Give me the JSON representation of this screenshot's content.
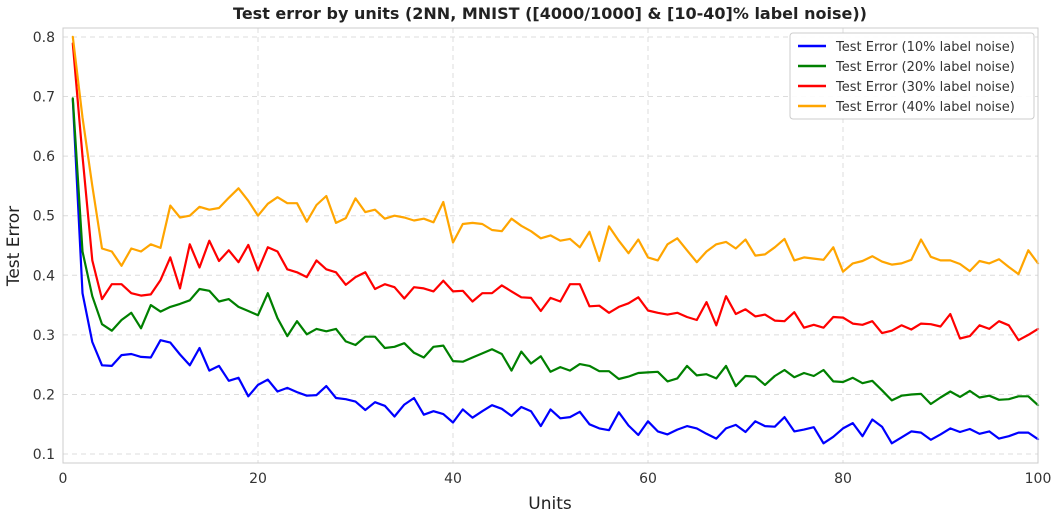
{
  "chart_data": {
    "type": "line",
    "title": "Test error by units (2NN, MNIST ([4000/1000] & [10-40]% label noise))",
    "xlabel": "Units",
    "ylabel": "Test Error",
    "xlim": [
      0,
      100
    ],
    "ylim": [
      0.085,
      0.815
    ],
    "xticks": [
      0,
      20,
      40,
      60,
      80,
      100
    ],
    "yticks": [
      0.1,
      0.2,
      0.3,
      0.4,
      0.5,
      0.6,
      0.7,
      0.8
    ],
    "grid": true,
    "legend_position": "top-right",
    "x": [
      1,
      2,
      3,
      4,
      5,
      6,
      7,
      8,
      9,
      10,
      11,
      12,
      13,
      14,
      15,
      16,
      17,
      18,
      19,
      20,
      21,
      22,
      23,
      24,
      25,
      26,
      27,
      28,
      29,
      30,
      31,
      32,
      33,
      34,
      35,
      36,
      37,
      38,
      39,
      40,
      41,
      42,
      43,
      44,
      45,
      46,
      47,
      48,
      49,
      50,
      51,
      52,
      53,
      54,
      55,
      56,
      57,
      58,
      59,
      60,
      61,
      62,
      63,
      64,
      65,
      66,
      67,
      68,
      69,
      70,
      71,
      72,
      73,
      74,
      75,
      76,
      77,
      78,
      79,
      80,
      81,
      82,
      83,
      84,
      85,
      86,
      87,
      88,
      89,
      90,
      91,
      92,
      93,
      94,
      95,
      96,
      97,
      98,
      99,
      100
    ],
    "series": [
      {
        "name": "Test Error (10% label noise)",
        "color": "#0000ff",
        "values": [
          0.695,
          0.37,
          0.288,
          0.249,
          0.248,
          0.266,
          0.268,
          0.263,
          0.262,
          0.291,
          0.287,
          0.267,
          0.249,
          0.278,
          0.24,
          0.248,
          0.223,
          0.228,
          0.197,
          0.216,
          0.225,
          0.205,
          0.211,
          0.204,
          0.198,
          0.199,
          0.214,
          0.194,
          0.192,
          0.188,
          0.174,
          0.187,
          0.181,
          0.163,
          0.183,
          0.194,
          0.166,
          0.172,
          0.167,
          0.153,
          0.175,
          0.161,
          0.172,
          0.182,
          0.176,
          0.164,
          0.179,
          0.172,
          0.147,
          0.175,
          0.16,
          0.162,
          0.171,
          0.15,
          0.143,
          0.14,
          0.17,
          0.148,
          0.132,
          0.155,
          0.138,
          0.133,
          0.141,
          0.147,
          0.143,
          0.134,
          0.126,
          0.143,
          0.149,
          0.137,
          0.155,
          0.147,
          0.146,
          0.162,
          0.138,
          0.141,
          0.145,
          0.118,
          0.129,
          0.143,
          0.152,
          0.13,
          0.158,
          0.146,
          0.118,
          0.128,
          0.138,
          0.136,
          0.124,
          0.133,
          0.143,
          0.137,
          0.142,
          0.134,
          0.138,
          0.126,
          0.13,
          0.136,
          0.136,
          0.125
        ]
      },
      {
        "name": "Test Error (20% label noise)",
        "color": "#008000",
        "values": [
          0.697,
          0.44,
          0.365,
          0.318,
          0.307,
          0.325,
          0.337,
          0.311,
          0.35,
          0.339,
          0.347,
          0.352,
          0.358,
          0.377,
          0.374,
          0.356,
          0.36,
          0.347,
          0.34,
          0.333,
          0.37,
          0.328,
          0.298,
          0.323,
          0.301,
          0.31,
          0.306,
          0.31,
          0.289,
          0.283,
          0.297,
          0.297,
          0.278,
          0.28,
          0.286,
          0.27,
          0.262,
          0.28,
          0.282,
          0.256,
          0.255,
          0.262,
          0.269,
          0.276,
          0.268,
          0.24,
          0.272,
          0.252,
          0.264,
          0.238,
          0.246,
          0.24,
          0.251,
          0.248,
          0.239,
          0.239,
          0.226,
          0.23,
          0.236,
          0.237,
          0.238,
          0.222,
          0.227,
          0.248,
          0.232,
          0.234,
          0.227,
          0.248,
          0.214,
          0.231,
          0.23,
          0.216,
          0.231,
          0.241,
          0.229,
          0.236,
          0.231,
          0.241,
          0.222,
          0.221,
          0.228,
          0.219,
          0.223,
          0.207,
          0.19,
          0.198,
          0.2,
          0.201,
          0.184,
          0.195,
          0.205,
          0.196,
          0.206,
          0.195,
          0.198,
          0.191,
          0.192,
          0.197,
          0.197,
          0.182
        ]
      },
      {
        "name": "Test Error (30% label noise)",
        "color": "#ff0000",
        "values": [
          0.789,
          0.6,
          0.425,
          0.36,
          0.385,
          0.385,
          0.37,
          0.366,
          0.368,
          0.392,
          0.43,
          0.378,
          0.452,
          0.413,
          0.458,
          0.424,
          0.442,
          0.422,
          0.451,
          0.408,
          0.447,
          0.44,
          0.41,
          0.405,
          0.397,
          0.425,
          0.41,
          0.405,
          0.384,
          0.397,
          0.405,
          0.377,
          0.385,
          0.38,
          0.361,
          0.38,
          0.378,
          0.373,
          0.391,
          0.373,
          0.374,
          0.356,
          0.37,
          0.37,
          0.383,
          0.373,
          0.363,
          0.362,
          0.34,
          0.362,
          0.356,
          0.385,
          0.385,
          0.348,
          0.349,
          0.337,
          0.347,
          0.353,
          0.363,
          0.341,
          0.337,
          0.334,
          0.337,
          0.33,
          0.325,
          0.355,
          0.316,
          0.365,
          0.335,
          0.343,
          0.331,
          0.334,
          0.324,
          0.323,
          0.338,
          0.312,
          0.317,
          0.312,
          0.33,
          0.329,
          0.319,
          0.317,
          0.323,
          0.303,
          0.307,
          0.316,
          0.309,
          0.319,
          0.318,
          0.314,
          0.335,
          0.294,
          0.298,
          0.316,
          0.31,
          0.323,
          0.316,
          0.291,
          0.3,
          0.31
        ]
      },
      {
        "name": "Test Error (40% label noise)",
        "color": "#ffa500",
        "values": [
          0.8,
          0.665,
          0.55,
          0.445,
          0.44,
          0.416,
          0.445,
          0.44,
          0.452,
          0.446,
          0.517,
          0.497,
          0.5,
          0.515,
          0.51,
          0.513,
          0.53,
          0.546,
          0.525,
          0.5,
          0.52,
          0.531,
          0.521,
          0.521,
          0.49,
          0.518,
          0.533,
          0.488,
          0.496,
          0.529,
          0.506,
          0.51,
          0.495,
          0.5,
          0.497,
          0.492,
          0.495,
          0.489,
          0.523,
          0.455,
          0.486,
          0.488,
          0.486,
          0.476,
          0.474,
          0.495,
          0.483,
          0.474,
          0.462,
          0.467,
          0.458,
          0.461,
          0.447,
          0.473,
          0.424,
          0.482,
          0.458,
          0.437,
          0.46,
          0.43,
          0.425,
          0.452,
          0.462,
          0.442,
          0.422,
          0.44,
          0.452,
          0.456,
          0.445,
          0.46,
          0.433,
          0.435,
          0.447,
          0.461,
          0.425,
          0.43,
          0.428,
          0.426,
          0.447,
          0.406,
          0.42,
          0.424,
          0.432,
          0.423,
          0.418,
          0.42,
          0.426,
          0.46,
          0.431,
          0.425,
          0.425,
          0.419,
          0.407,
          0.424,
          0.42,
          0.427,
          0.414,
          0.402,
          0.442,
          0.42
        ]
      }
    ]
  }
}
